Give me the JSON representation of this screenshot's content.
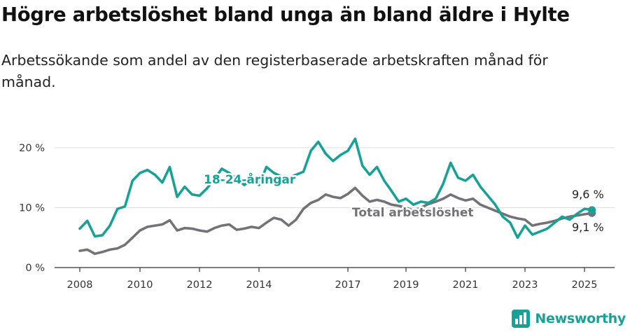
{
  "title": "Högre arbetslöshet bland unga än bland äldre i Hylte",
  "subtitle": "Arbetssökande som andel av den registerbaserade arbetskraften månad för månad.",
  "brand": {
    "name": "Newsworthy",
    "icon": "bar-chart-logo-icon",
    "color": "#18a196"
  },
  "chart_data": {
    "type": "line",
    "x_ticks": [
      "2008",
      "2010",
      "2012",
      "2014",
      "2017",
      "2019",
      "2021",
      "2023",
      "2025"
    ],
    "y_ticks": [
      "0 %",
      "10 %",
      "20 %"
    ],
    "ylim": [
      0,
      25
    ],
    "xlim": [
      "2007-10",
      "2025-12"
    ],
    "grid": "horizontal",
    "series": [
      {
        "name": "18-24-åringar",
        "color": "#18a196",
        "end_label": "9,6 %",
        "points": [
          [
            "2008-01",
            6.5
          ],
          [
            "2008-04",
            7.8
          ],
          [
            "2008-07",
            5.2
          ],
          [
            "2008-10",
            5.4
          ],
          [
            "2009-01",
            7.0
          ],
          [
            "2009-04",
            9.8
          ],
          [
            "2009-07",
            10.2
          ],
          [
            "2009-10",
            14.5
          ],
          [
            "2010-01",
            15.8
          ],
          [
            "2010-04",
            16.3
          ],
          [
            "2010-07",
            15.5
          ],
          [
            "2010-10",
            14.2
          ],
          [
            "2011-01",
            16.8
          ],
          [
            "2011-04",
            11.8
          ],
          [
            "2011-07",
            13.5
          ],
          [
            "2011-10",
            12.2
          ],
          [
            "2012-01",
            12.0
          ],
          [
            "2012-04",
            13.2
          ],
          [
            "2012-07",
            14.8
          ],
          [
            "2012-10",
            16.5
          ],
          [
            "2013-01",
            15.8
          ],
          [
            "2013-04",
            14.8
          ],
          [
            "2013-07",
            13.8
          ],
          [
            "2013-10",
            14.5
          ],
          [
            "2014-01",
            13.8
          ],
          [
            "2014-04",
            16.8
          ],
          [
            "2014-07",
            15.8
          ],
          [
            "2014-10",
            15.2
          ],
          [
            "2015-01",
            15.0
          ],
          [
            "2015-04",
            15.5
          ],
          [
            "2015-07",
            16.0
          ],
          [
            "2015-10",
            19.5
          ],
          [
            "2016-01",
            21.0
          ],
          [
            "2016-04",
            19.0
          ],
          [
            "2016-07",
            17.8
          ],
          [
            "2016-10",
            18.8
          ],
          [
            "2017-01",
            19.5
          ],
          [
            "2017-04",
            21.5
          ],
          [
            "2017-07",
            17.0
          ],
          [
            "2017-10",
            15.5
          ],
          [
            "2018-01",
            16.8
          ],
          [
            "2018-04",
            14.5
          ],
          [
            "2018-07",
            12.8
          ],
          [
            "2018-10",
            11.0
          ],
          [
            "2019-01",
            11.5
          ],
          [
            "2019-04",
            10.5
          ],
          [
            "2019-07",
            11.0
          ],
          [
            "2019-10",
            10.8
          ],
          [
            "2020-01",
            11.5
          ],
          [
            "2020-04",
            14.0
          ],
          [
            "2020-07",
            17.5
          ],
          [
            "2020-10",
            15.0
          ],
          [
            "2021-01",
            14.5
          ],
          [
            "2021-04",
            15.5
          ],
          [
            "2021-07",
            13.5
          ],
          [
            "2021-10",
            12.0
          ],
          [
            "2022-01",
            10.5
          ],
          [
            "2022-04",
            8.5
          ],
          [
            "2022-07",
            7.5
          ],
          [
            "2022-10",
            5.0
          ],
          [
            "2023-01",
            7.0
          ],
          [
            "2023-04",
            5.5
          ],
          [
            "2023-07",
            6.0
          ],
          [
            "2023-10",
            6.5
          ],
          [
            "2024-01",
            7.5
          ],
          [
            "2024-04",
            8.5
          ],
          [
            "2024-07",
            8.0
          ],
          [
            "2024-10",
            9.0
          ],
          [
            "2025-01",
            9.8
          ],
          [
            "2025-04",
            9.6
          ]
        ]
      },
      {
        "name": "Total arbetslöshet",
        "color": "#737278",
        "end_label": "9,1 %",
        "points": [
          [
            "2008-01",
            2.8
          ],
          [
            "2008-04",
            3.0
          ],
          [
            "2008-07",
            2.3
          ],
          [
            "2008-10",
            2.6
          ],
          [
            "2009-01",
            3.0
          ],
          [
            "2009-04",
            3.2
          ],
          [
            "2009-07",
            3.8
          ],
          [
            "2009-10",
            5.0
          ],
          [
            "2010-01",
            6.2
          ],
          [
            "2010-04",
            6.8
          ],
          [
            "2010-07",
            7.0
          ],
          [
            "2010-10",
            7.2
          ],
          [
            "2011-01",
            7.9
          ],
          [
            "2011-04",
            6.2
          ],
          [
            "2011-07",
            6.6
          ],
          [
            "2011-10",
            6.5
          ],
          [
            "2012-01",
            6.2
          ],
          [
            "2012-04",
            6.0
          ],
          [
            "2012-07",
            6.6
          ],
          [
            "2012-10",
            7.0
          ],
          [
            "2013-01",
            7.2
          ],
          [
            "2013-04",
            6.3
          ],
          [
            "2013-07",
            6.5
          ],
          [
            "2013-10",
            6.8
          ],
          [
            "2014-01",
            6.6
          ],
          [
            "2014-04",
            7.5
          ],
          [
            "2014-07",
            8.3
          ],
          [
            "2014-10",
            8.0
          ],
          [
            "2015-01",
            7.0
          ],
          [
            "2015-04",
            8.0
          ],
          [
            "2015-07",
            9.8
          ],
          [
            "2015-10",
            10.8
          ],
          [
            "2016-01",
            11.3
          ],
          [
            "2016-04",
            12.2
          ],
          [
            "2016-07",
            11.8
          ],
          [
            "2016-10",
            11.6
          ],
          [
            "2017-01",
            12.3
          ],
          [
            "2017-04",
            13.3
          ],
          [
            "2017-07",
            12.0
          ],
          [
            "2017-10",
            11.0
          ],
          [
            "2018-01",
            11.3
          ],
          [
            "2018-04",
            11.0
          ],
          [
            "2018-07",
            10.5
          ],
          [
            "2018-10",
            10.3
          ],
          [
            "2019-01",
            10.0
          ],
          [
            "2019-04",
            9.5
          ],
          [
            "2019-07",
            10.0
          ],
          [
            "2019-10",
            10.6
          ],
          [
            "2020-01",
            11.0
          ],
          [
            "2020-04",
            11.5
          ],
          [
            "2020-07",
            12.2
          ],
          [
            "2020-10",
            11.6
          ],
          [
            "2021-01",
            11.2
          ],
          [
            "2021-04",
            11.5
          ],
          [
            "2021-07",
            10.5
          ],
          [
            "2021-10",
            10.0
          ],
          [
            "2022-01",
            9.5
          ],
          [
            "2022-04",
            9.0
          ],
          [
            "2022-07",
            8.5
          ],
          [
            "2022-10",
            8.2
          ],
          [
            "2023-01",
            8.0
          ],
          [
            "2023-04",
            7.0
          ],
          [
            "2023-07",
            7.3
          ],
          [
            "2023-10",
            7.5
          ],
          [
            "2024-01",
            7.8
          ],
          [
            "2024-04",
            8.2
          ],
          [
            "2024-07",
            8.5
          ],
          [
            "2024-10",
            8.7
          ],
          [
            "2025-01",
            8.9
          ],
          [
            "2025-04",
            9.1
          ]
        ]
      }
    ]
  }
}
